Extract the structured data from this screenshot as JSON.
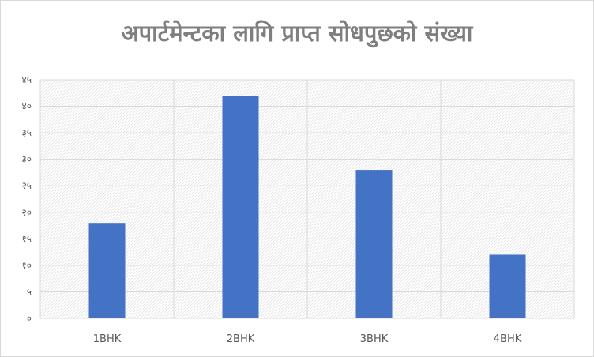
{
  "chart_data": {
    "type": "bar",
    "title": "अपार्टमेन्टका लागि प्राप्त सोधपुछको संख्या",
    "categories": [
      "1BHK",
      "2BHK",
      "3BHK",
      "4BHK"
    ],
    "values": [
      18,
      42,
      28,
      12
    ],
    "ylim": [
      0,
      45
    ],
    "yticks": [
      0,
      5,
      10,
      15,
      20,
      25,
      30,
      35,
      40,
      45
    ],
    "ytick_labels": [
      "०",
      "५",
      "१०",
      "१५",
      "२०",
      "२५",
      "३०",
      "३५",
      "४०",
      "४५"
    ],
    "grid": true,
    "legend": "none",
    "xlabel": "",
    "ylabel": ""
  },
  "colors": {
    "bar": "#4472c4",
    "title": "#7f7f7f",
    "grid": "#d9d9d9",
    "axis_text": "#595959",
    "hatch": "#e3e3e3"
  }
}
